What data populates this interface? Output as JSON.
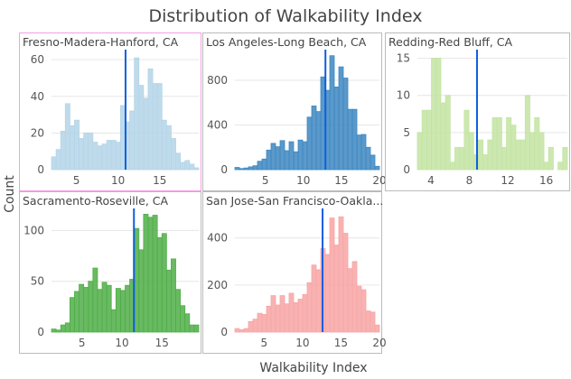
{
  "title": "Distribution of Walkability Index",
  "xlabel": "Walkability Index",
  "ylabel": "Count",
  "mean_line_color": "#0b5fe0",
  "chart_data": [
    {
      "type": "bar",
      "title": "Fresno-Madera-Hanford, CA",
      "color": "#b4d5e8",
      "selected": true,
      "xlim": [
        2,
        19.7
      ],
      "ylim": [
        0,
        64
      ],
      "xticks": [
        5,
        10,
        15
      ],
      "yticks": [
        0,
        20,
        40,
        60
      ],
      "mean": 10.9,
      "values": [
        7,
        11,
        21,
        36,
        24,
        27,
        17,
        20,
        20,
        15,
        13,
        14,
        16,
        16,
        15,
        35,
        26,
        32,
        61,
        46,
        39,
        55,
        47,
        47,
        27,
        24,
        17,
        9,
        4,
        5,
        3,
        1
      ]
    },
    {
      "type": "bar",
      "title": "Los Angeles-Long Beach, CA",
      "color": "#3d87c1",
      "xlim": [
        1,
        20
      ],
      "ylim": [
        0,
        1050
      ],
      "xticks": [
        5,
        10,
        15,
        20
      ],
      "yticks": [
        0,
        400,
        800
      ],
      "mean": 12.9,
      "values": [
        20,
        10,
        15,
        25,
        35,
        75,
        95,
        175,
        235,
        205,
        260,
        170,
        250,
        160,
        265,
        250,
        470,
        570,
        520,
        830,
        710,
        1020,
        740,
        920,
        820,
        540,
        540,
        310,
        315,
        200,
        130,
        30
      ]
    },
    {
      "type": "bar",
      "title": "Redding-Red Bluff, CA",
      "color": "#c3e4a2",
      "xlim": [
        2.6,
        18.2
      ],
      "ylim": [
        0,
        15.8
      ],
      "xticks": [
        4,
        8,
        12,
        16
      ],
      "yticks": [
        0,
        5,
        10,
        15
      ],
      "mean": 8.8,
      "values": [
        5,
        8,
        8,
        15,
        15,
        9,
        10,
        1,
        3,
        3,
        8,
        5,
        2,
        4,
        2,
        4,
        7,
        7,
        3,
        7,
        6,
        4,
        4,
        10,
        5,
        7,
        5,
        1,
        3,
        0,
        1,
        3
      ]
    },
    {
      "type": "bar",
      "title": "Sacramento-Roseville, CA",
      "color": "#4fae47",
      "xlim": [
        1.2,
        19.6
      ],
      "ylim": [
        0,
        119
      ],
      "xticks": [
        5,
        10,
        15
      ],
      "yticks": [
        0,
        50,
        100
      ],
      "mean": 11.5,
      "values": [
        3,
        2,
        7,
        9,
        34,
        40,
        47,
        44,
        50,
        63,
        42,
        49,
        46,
        22,
        43,
        41,
        46,
        52,
        102,
        81,
        116,
        113,
        115,
        93,
        97,
        61,
        72,
        42,
        26,
        18,
        7,
        7
      ]
    },
    {
      "type": "bar",
      "title": "San Jose-San Francisco-Oakla...",
      "color": "#f8a5a5",
      "xlim": [
        1.2,
        20
      ],
      "ylim": [
        0,
        514
      ],
      "xticks": [
        5,
        10,
        15,
        20
      ],
      "yticks": [
        0,
        200,
        400
      ],
      "mean": 12.6,
      "values": [
        15,
        10,
        15,
        45,
        55,
        80,
        75,
        110,
        155,
        115,
        155,
        120,
        165,
        125,
        140,
        160,
        210,
        285,
        265,
        355,
        330,
        485,
        370,
        490,
        420,
        270,
        300,
        195,
        180,
        90,
        85,
        30
      ]
    }
  ]
}
